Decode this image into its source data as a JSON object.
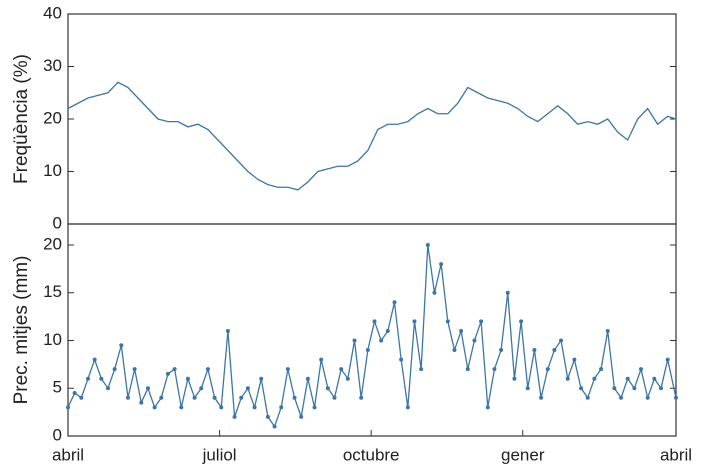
{
  "chart_data": [
    {
      "type": "line",
      "ylabel": "Freqüència (%)",
      "color": "#3d76a6",
      "marker": false,
      "xlim": [
        0,
        365
      ],
      "ylim": [
        0,
        40
      ],
      "yticks": [
        0,
        10,
        20,
        30,
        40
      ],
      "x": [
        0,
        6,
        12,
        18,
        24,
        30,
        36,
        42,
        48,
        54,
        60,
        66,
        72,
        78,
        84,
        90,
        96,
        102,
        108,
        114,
        120,
        126,
        132,
        138,
        144,
        150,
        156,
        162,
        168,
        174,
        180,
        186,
        192,
        198,
        204,
        210,
        216,
        222,
        228,
        234,
        240,
        246,
        252,
        258,
        264,
        270,
        276,
        282,
        288,
        294,
        300,
        306,
        312,
        318,
        324,
        330,
        336,
        342,
        348,
        354,
        360,
        365
      ],
      "values": [
        22,
        23,
        24,
        24.5,
        25,
        27,
        26,
        24,
        22,
        20,
        19.5,
        19.5,
        18.5,
        19,
        18,
        16,
        14,
        12,
        10,
        8.5,
        7.5,
        7,
        7,
        6.5,
        8,
        10,
        10.5,
        11,
        11,
        12,
        14,
        18,
        19,
        19,
        19.5,
        21,
        22,
        21,
        21,
        23,
        26,
        25,
        24,
        23.5,
        23,
        22,
        20.5,
        19.5,
        21,
        22.5,
        21,
        19,
        19.5,
        19,
        20,
        17.5,
        16,
        20,
        22,
        19,
        20.5,
        20
      ]
    },
    {
      "type": "line",
      "ylabel": "Prec. mitjes (mm)",
      "color": "#3d76a6",
      "marker": true,
      "xlim": [
        0,
        365
      ],
      "ylim": [
        0,
        22.2
      ],
      "yticks": [
        0,
        5,
        10,
        15,
        20
      ],
      "xticks": [
        {
          "value": 0,
          "label": "abril"
        },
        {
          "value": 91,
          "label": "juliol"
        },
        {
          "value": 182,
          "label": "octubre"
        },
        {
          "value": 273,
          "label": "gener"
        },
        {
          "value": 365,
          "label": "abril"
        }
      ],
      "x": [
        0,
        4,
        8,
        12,
        16,
        20,
        24,
        28,
        32,
        36,
        40,
        44,
        48,
        52,
        56,
        60,
        64,
        68,
        72,
        76,
        80,
        84,
        88,
        92,
        96,
        100,
        104,
        108,
        112,
        116,
        120,
        124,
        128,
        132,
        136,
        140,
        144,
        148,
        152,
        156,
        160,
        164,
        168,
        172,
        176,
        180,
        184,
        188,
        192,
        196,
        200,
        204,
        208,
        212,
        216,
        220,
        224,
        228,
        232,
        236,
        240,
        244,
        248,
        252,
        256,
        260,
        264,
        268,
        272,
        276,
        280,
        284,
        288,
        292,
        296,
        300,
        304,
        308,
        312,
        316,
        320,
        324,
        328,
        332,
        336,
        340,
        344,
        348,
        352,
        356,
        360,
        365
      ],
      "values": [
        3,
        4.5,
        4,
        6,
        8,
        6,
        5,
        7,
        9.5,
        4,
        7,
        3.5,
        5,
        3,
        4,
        6.5,
        7,
        3,
        6,
        4,
        5,
        7,
        4,
        3,
        11,
        2,
        4,
        5,
        3,
        6,
        2,
        1,
        3,
        7,
        4,
        2,
        6,
        3,
        8,
        5,
        4,
        7,
        6,
        10,
        4,
        9,
        12,
        10,
        11,
        14,
        8,
        3,
        12,
        7,
        20,
        15,
        18,
        12,
        9,
        11,
        7,
        10,
        12,
        3,
        7,
        9,
        15,
        6,
        12,
        5,
        9,
        4,
        7,
        9,
        10,
        6,
        8,
        5,
        4,
        6,
        7,
        11,
        5,
        4,
        6,
        5,
        7,
        4,
        6,
        5,
        8,
        4
      ]
    }
  ]
}
